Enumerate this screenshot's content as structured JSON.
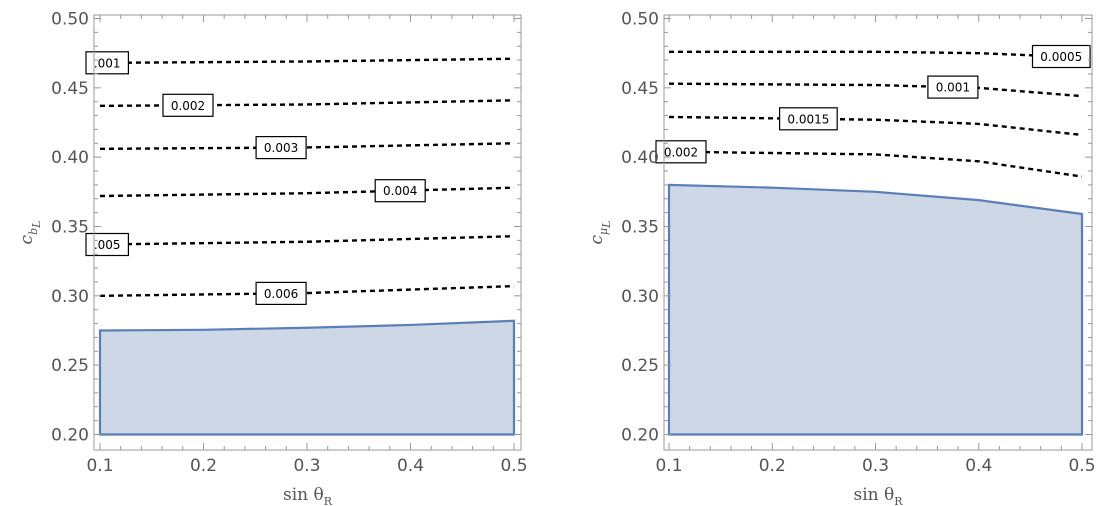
{
  "chart_data": [
    {
      "type": "contour",
      "title": "",
      "xlabel": {
        "main": "sin θ",
        "sub": "R"
      },
      "ylabel": {
        "main": "c",
        "sub": "b",
        "subsub": "L"
      },
      "xlim": [
        0.1,
        0.5
      ],
      "ylim": [
        0.2,
        0.5
      ],
      "xticks": [
        "0.1",
        "0.2",
        "0.3",
        "0.4",
        "0.5"
      ],
      "yticks": [
        "0.20",
        "0.25",
        "0.30",
        "0.35",
        "0.40",
        "0.45",
        "0.50"
      ],
      "contours": [
        {
          "label": ".001",
          "points": [
            [
              0.1,
              0.468
            ],
            [
              0.3,
              0.469
            ],
            [
              0.5,
              0.471
            ]
          ],
          "label_at": 0.105
        },
        {
          "label": "0.002",
          "points": [
            [
              0.1,
              0.437
            ],
            [
              0.3,
              0.438
            ],
            [
              0.5,
              0.441
            ]
          ],
          "label_at": 0.185
        },
        {
          "label": "0.003",
          "points": [
            [
              0.1,
              0.406
            ],
            [
              0.3,
              0.407
            ],
            [
              0.5,
              0.41
            ]
          ],
          "label_at": 0.275
        },
        {
          "label": "0.004",
          "points": [
            [
              0.1,
              0.372
            ],
            [
              0.3,
              0.374
            ],
            [
              0.5,
              0.378
            ]
          ],
          "label_at": 0.39
        },
        {
          "label": ".005",
          "points": [
            [
              0.1,
              0.337
            ],
            [
              0.3,
              0.339
            ],
            [
              0.5,
              0.343
            ]
          ],
          "label_at": 0.105
        },
        {
          "label": "0.006",
          "points": [
            [
              0.1,
              0.3
            ],
            [
              0.3,
              0.302
            ],
            [
              0.5,
              0.307
            ]
          ],
          "label_at": 0.275
        }
      ],
      "shaded_region": {
        "upper": [
          [
            0.1,
            0.275
          ],
          [
            0.2,
            0.2755
          ],
          [
            0.3,
            0.277
          ],
          [
            0.4,
            0.279
          ],
          [
            0.5,
            0.282
          ]
        ],
        "lower": 0.2,
        "fill": "#cdd7e6",
        "stroke": "#5a7fb8"
      }
    },
    {
      "type": "contour",
      "title": "",
      "xlabel": {
        "main": "sin θ",
        "sub": "R"
      },
      "ylabel": {
        "main": "c",
        "sub": "μ",
        "subsub": "L"
      },
      "xlim": [
        0.1,
        0.5
      ],
      "ylim": [
        0.2,
        0.5
      ],
      "xticks": [
        "0.1",
        "0.2",
        "0.3",
        "0.4",
        "0.5"
      ],
      "yticks": [
        "0.20",
        "0.25",
        "0.30",
        "0.35",
        "0.40",
        "0.45",
        "0.50"
      ],
      "contours": [
        {
          "label": "0.0005",
          "points": [
            [
              0.1,
              0.476
            ],
            [
              0.3,
              0.476
            ],
            [
              0.4,
              0.475
            ],
            [
              0.5,
              0.472
            ]
          ],
          "label_at": 0.48
        },
        {
          "label": "0.001",
          "points": [
            [
              0.1,
              0.453
            ],
            [
              0.3,
              0.452
            ],
            [
              0.4,
              0.45
            ],
            [
              0.5,
              0.444
            ]
          ],
          "label_at": 0.375
        },
        {
          "label": "0.0015",
          "points": [
            [
              0.1,
              0.429
            ],
            [
              0.3,
              0.427
            ],
            [
              0.4,
              0.424
            ],
            [
              0.5,
              0.416
            ]
          ],
          "label_at": 0.235
        },
        {
          "label": "0.002",
          "points": [
            [
              0.1,
              0.404
            ],
            [
              0.3,
              0.402
            ],
            [
              0.4,
              0.397
            ],
            [
              0.5,
              0.386
            ]
          ],
          "label_at": 0.11
        }
      ],
      "shaded_region": {
        "upper": [
          [
            0.1,
            0.38
          ],
          [
            0.2,
            0.378
          ],
          [
            0.3,
            0.375
          ],
          [
            0.4,
            0.369
          ],
          [
            0.5,
            0.359
          ]
        ],
        "lower": 0.2,
        "fill": "#cdd7e6",
        "stroke": "#5a7fb8"
      }
    }
  ]
}
